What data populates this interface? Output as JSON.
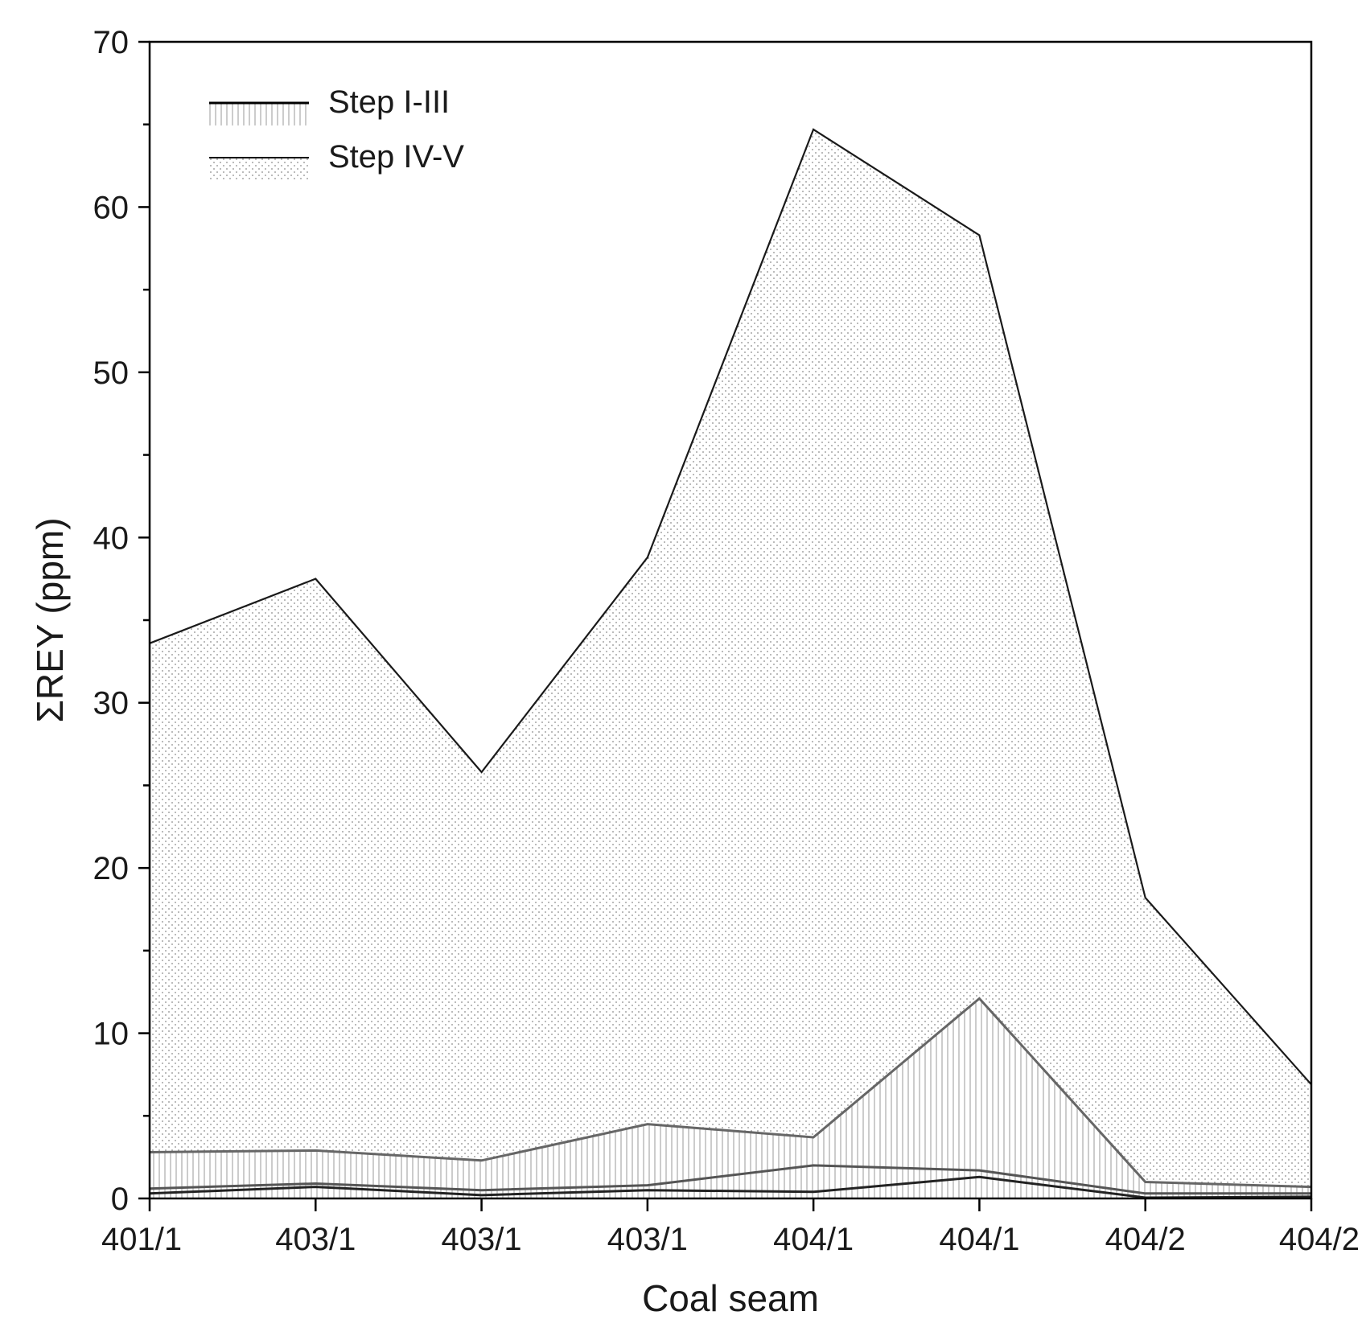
{
  "chart_data": {
    "type": "area",
    "xlabel": "Coal seam",
    "ylabel": "ΣREY (ppm)",
    "categories": [
      "401/1",
      "403/1",
      "403/1",
      "403/1",
      "404/1",
      "404/1",
      "404/2",
      "404/2"
    ],
    "ylim": [
      0,
      70
    ],
    "yticks": [
      0,
      10,
      20,
      30,
      40,
      50,
      60,
      70
    ],
    "legend_position": "top-left",
    "grid": false,
    "legend": [
      {
        "label": "Step I-III",
        "pattern": "vertical-hatch",
        "color": "#000000"
      },
      {
        "label": "Step IV-V",
        "pattern": "dots",
        "color": "#000000"
      }
    ],
    "series": [
      {
        "name": "Step I-III",
        "pattern": "vertical-hatch",
        "line_color": "#666666",
        "cumulative_values": [
          2.8,
          2.9,
          2.3,
          4.5,
          3.7,
          12.1,
          1.0,
          0.7
        ]
      },
      {
        "name": "Step IV-V",
        "pattern": "dots",
        "line_color": "#1a1a1a",
        "cumulative_values": [
          33.6,
          37.5,
          25.8,
          38.8,
          64.7,
          58.3,
          18.2,
          6.9
        ]
      }
    ],
    "boundary_lines": [
      {
        "color": "#222222",
        "values": [
          0.3,
          0.7,
          0.2,
          0.5,
          0.4,
          1.3,
          0.05,
          0.1
        ]
      },
      {
        "color": "#555555",
        "values": [
          0.6,
          0.9,
          0.5,
          0.8,
          2.0,
          1.7,
          0.3,
          0.3
        ]
      }
    ]
  }
}
